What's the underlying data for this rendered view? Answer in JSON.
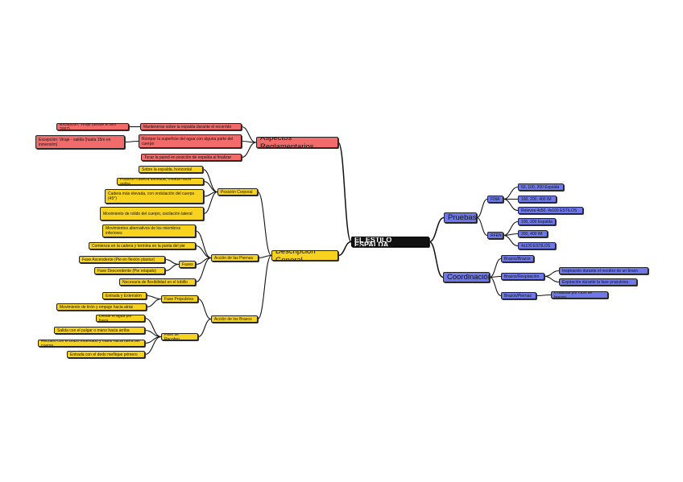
{
  "root": "EL ESTILO ESPALDA",
  "colors": {
    "reglamento": "#f26b6b",
    "descripcion": "#f7d21e",
    "pruebas": "#6f78e8",
    "root": "#111111"
  },
  "reglamento": {
    "title": "Aspectos Reglamentarios",
    "items": [
      "Mantenerse sobre la espalda durante el recorrido",
      "Excepción: Viraje (desde el año 2007)",
      "Romper la superficie del agua con alguna parte del cuerpo",
      "Excepción: Viraje - salida (hasta 15m en inmersión)",
      "Tocar la pared en posición de espalda al finalizar"
    ]
  },
  "descripcion": {
    "title": "Descripción General",
    "posicion": {
      "title": "Posición Corporal",
      "items": [
        "Sobre la espalda, horizontal",
        "Posición cabeza alineada, mirada hacia arriba",
        "Cadera más elevada, con ondulación del cuerpo (45°)",
        "Movimiento de rolido del cuerpo, oscilación lateral"
      ]
    },
    "piernas": {
      "title": "Acción de las Piernas",
      "items": [
        "Movimientos alternativos de los miembros inferiores",
        "Comienza en la cadera y termina en la punta del pie",
        "Necesaria de flexibilidad en el tobillo"
      ],
      "fases": {
        "title": "Fases",
        "items": [
          "Fase Ascendente (Pie en flexión plantar)",
          "Fase Descendente (Pie relajado)"
        ]
      }
    },
    "brazos": {
      "title": "Acción de los Brazos",
      "propulsiva": {
        "title": "Fase Propulsiva",
        "items": [
          "Entrada y Extensión",
          "Movimiento de tirón y empuje hacia atrás"
        ]
      },
      "recobro": {
        "title": "Fase de Recobro",
        "items": [
          "Desde el agua por fuera",
          "Salida con el pulgar o mano hacia arriba",
          "Recobro con el brazo extendido y mano hacia fuera del cuerpo",
          "Entrada con el dedo meñique primero"
        ]
      }
    }
  },
  "pruebas": {
    "title": "Pruebas",
    "fina": {
      "title": "FINA",
      "items": [
        "50, 100, 200 Espalda",
        "100, 200, 400 IM",
        "Relevos 4x50, 4x100 ESTILOS"
      ]
    },
    "rfen": {
      "title": "RFEN",
      "items": [
        "100, 200 Espalda",
        "200, 400 IM",
        "4x100 ESTILOS"
      ]
    }
  },
  "coordinacion": {
    "title": "Coordinación",
    "bb": {
      "title": "Brazos/Brazos"
    },
    "br": {
      "title": "Brazos/Respiración",
      "items": [
        "Inspiración durante el recobro de un brazo",
        "Espiración durante la fase propulsiva"
      ]
    },
    "bp": {
      "title": "Brazos/Piernas",
      "items": [
        "6 batidas por ciclo de brazos"
      ]
    }
  }
}
